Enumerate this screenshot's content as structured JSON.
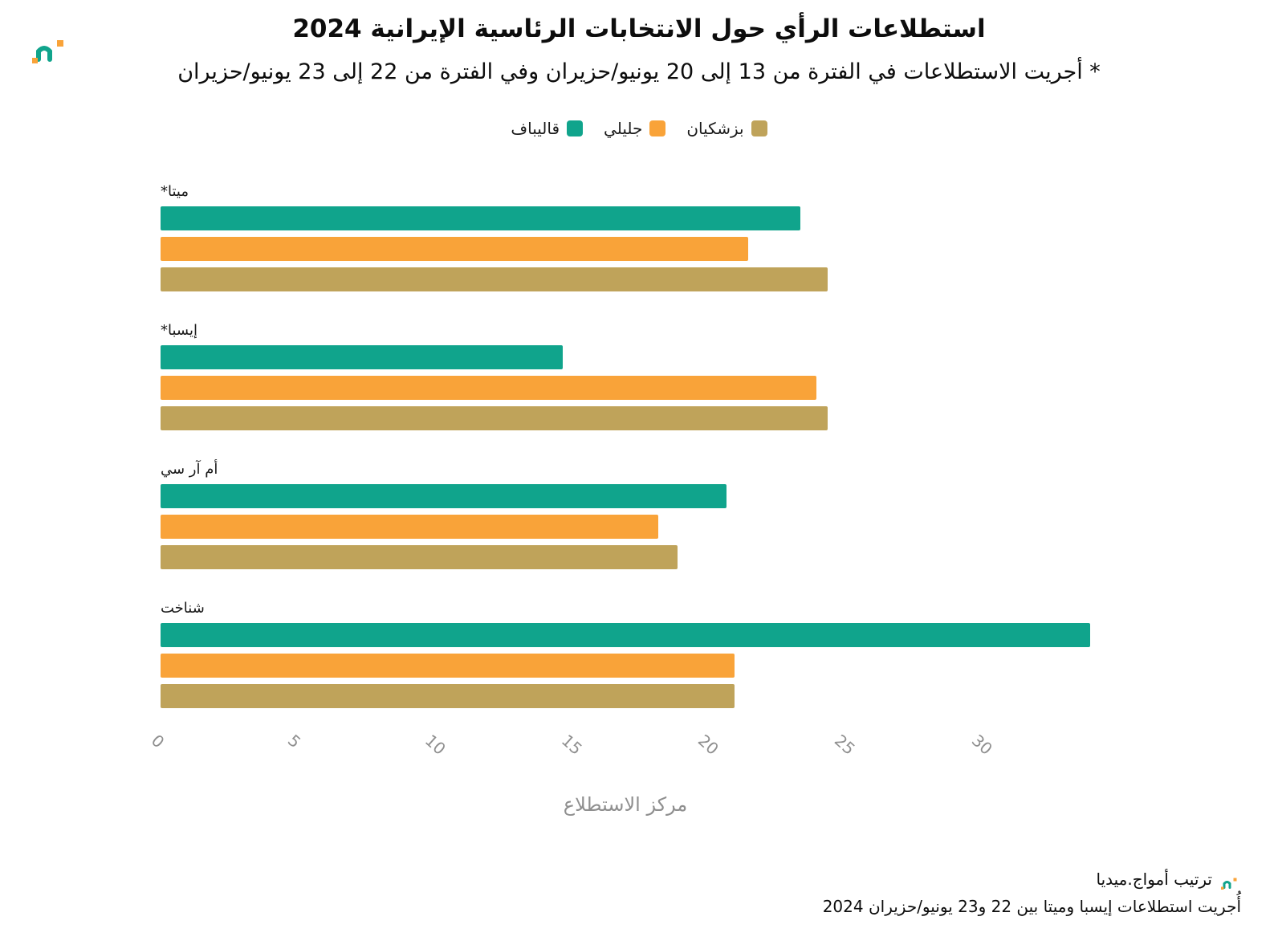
{
  "title": "استطلاعات الرأي حول الانتخابات الرئاسية الإيرانية 2024",
  "subtitle": "* أجريت الاستطلاعات في الفترة من 13 إلى 20 يونيو/حزيران وفي الفترة من 22 إلى 23 يونيو/حزيران",
  "logo": {
    "name": "amwaj-media-logo"
  },
  "colors": {
    "ghalibaf_teal": "#10a48c",
    "jalili_orange": "#f9a339",
    "pezeshkian_tan": "#bfa35a",
    "tick_gray": "#8f8f8f"
  },
  "footer": {
    "line1": "ترتيب أمواج.ميديا",
    "line2": "أُجريت استطلاعات إيسبا وميتا بين 22 و23 يونيو/حزيران 2024"
  },
  "chart_data": {
    "type": "bar",
    "orientation": "horizontal",
    "title": "استطلاعات الرأي حول الانتخابات الرئاسية الإيرانية 2024",
    "subtitle": "* أجريت الاستطلاعات في الفترة من 13 إلى 20 يونيو/حزيران وفي الفترة من 22 إلى 23 يونيو/حزيران",
    "xlabel": "مركز الاستطلاع",
    "categories": [
      "ميتا*",
      "إيسبا*",
      "أم آر سي",
      "شناخت"
    ],
    "series": [
      {
        "name": "قاليباف",
        "color": "#10a48c",
        "values": [
          23.4,
          14.7,
          20.7,
          34.0
        ]
      },
      {
        "name": "جليلي",
        "color": "#f9a339",
        "values": [
          21.5,
          24.0,
          18.2,
          21.0
        ]
      },
      {
        "name": "بزشكيان",
        "color": "#bfa35a",
        "values": [
          24.4,
          24.4,
          18.9,
          21.0
        ]
      }
    ],
    "xlim": [
      0,
      34
    ],
    "ticks": [
      0,
      5,
      10,
      15,
      20,
      25,
      30
    ],
    "legend_position": "top-center",
    "grid": false
  }
}
